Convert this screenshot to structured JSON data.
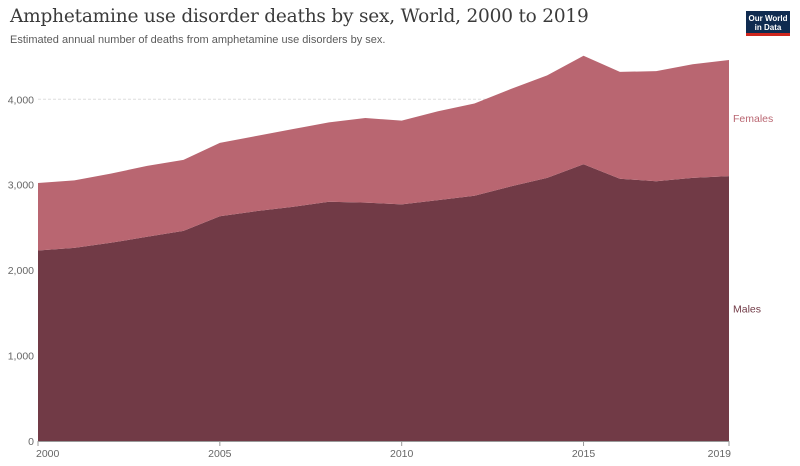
{
  "header": {
    "title": "Amphetamine use disorder deaths by sex, World, 2000 to 2019",
    "subtitle": "Estimated annual number of deaths from amphetamine use disorders by sex.",
    "logo_line1": "Our World",
    "logo_line2": "in Data"
  },
  "chart_data": {
    "type": "area",
    "stacked": true,
    "title": "Amphetamine use disorder deaths by sex, World, 2000 to 2019",
    "subtitle": "Estimated annual number of deaths from amphetamine use disorders by sex.",
    "x": [
      2000,
      2001,
      2002,
      2003,
      2004,
      2005,
      2006,
      2007,
      2008,
      2009,
      2010,
      2011,
      2012,
      2013,
      2014,
      2015,
      2016,
      2017,
      2018,
      2019
    ],
    "series": [
      {
        "name": "Males",
        "color": "#713a46",
        "values": [
          2230,
          2260,
          2320,
          2390,
          2460,
          2630,
          2690,
          2740,
          2800,
          2790,
          2770,
          2820,
          2870,
          2980,
          3080,
          3240,
          3070,
          3040,
          3080,
          3100
        ]
      },
      {
        "name": "Females",
        "color": "#b96671",
        "values": [
          790,
          790,
          810,
          830,
          830,
          860,
          880,
          910,
          930,
          990,
          980,
          1040,
          1080,
          1140,
          1200,
          1270,
          1250,
          1290,
          1330,
          1360
        ]
      }
    ],
    "x_ticks": [
      "2000",
      "2005",
      "2010",
      "2015",
      "2019"
    ],
    "y_ticks": [
      "0",
      "1,000",
      "2,000",
      "3,000",
      "4,000"
    ],
    "ylim": [
      0,
      4600
    ],
    "grid": "horizontal dashed",
    "legend": "right, inline labels"
  }
}
